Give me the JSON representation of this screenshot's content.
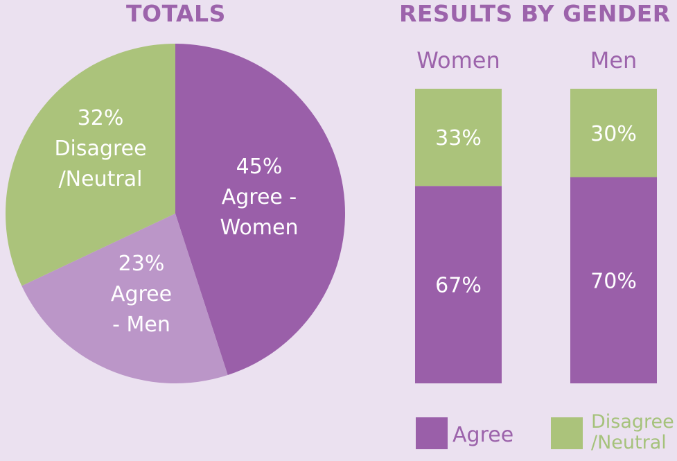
{
  "colors": {
    "agree_women": "#9a5fa9",
    "agree_men": "#bb96c8",
    "disagree": "#abc37b",
    "title": "#9c63ab",
    "legend_disagree_text": "#a5c27b",
    "background": "#ebe1f0"
  },
  "chart_data": [
    {
      "type": "pie",
      "title": "TOTALS",
      "slices": [
        {
          "label_value": "45%",
          "label_lines": [
            "Agree -",
            "Women"
          ],
          "value": 45,
          "color": "#9a5fa9"
        },
        {
          "label_value": "23%",
          "label_lines": [
            "Agree",
            "- Men"
          ],
          "value": 23,
          "color": "#bb96c8"
        },
        {
          "label_value": "32%",
          "label_lines": [
            "Disagree",
            "/Neutral"
          ],
          "value": 32,
          "color": "#abc37b"
        }
      ]
    },
    {
      "type": "bar",
      "stacked": true,
      "title": "RESULTS BY GENDER",
      "categories": [
        "Women",
        "Men"
      ],
      "series": [
        {
          "name": "Agree",
          "values": [
            67,
            70
          ],
          "labels": [
            "67%",
            "70%"
          ],
          "color": "#9a5fa9"
        },
        {
          "name": "Disagree /Neutral",
          "values": [
            33,
            30
          ],
          "labels": [
            "33%",
            "30%"
          ],
          "color": "#abc37b"
        }
      ],
      "ylim": [
        0,
        100
      ],
      "legend": {
        "placement": "bottom",
        "items": [
          {
            "label_lines": [
              "Agree"
            ],
            "color": "#9a5fa9"
          },
          {
            "label_lines": [
              "Disagree",
              "/Neutral"
            ],
            "color": "#abc37b"
          }
        ]
      }
    }
  ]
}
